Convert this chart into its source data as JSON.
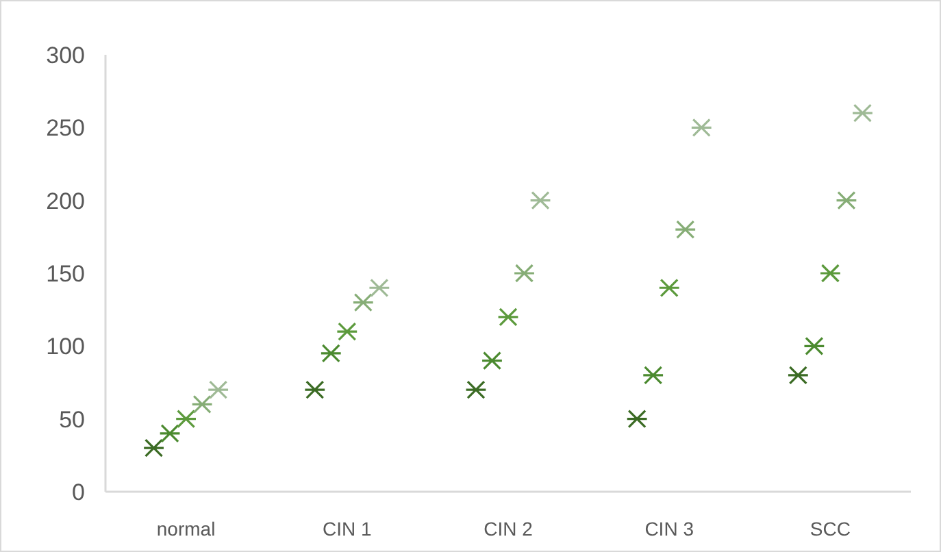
{
  "chart_data": {
    "type": "scatter",
    "categories": [
      "normal",
      "CIN 1",
      "CIN 2",
      "CIN 3",
      "SCC"
    ],
    "series": [
      {
        "color": "#3b6b24",
        "values": [
          30,
          70,
          70,
          50,
          80
        ]
      },
      {
        "color": "#4b8a2f",
        "values": [
          40,
          95,
          90,
          80,
          100
        ]
      },
      {
        "color": "#5c9a3c",
        "values": [
          50,
          110,
          120,
          140,
          150
        ]
      },
      {
        "color": "#86ad76",
        "values": [
          60,
          130,
          150,
          180,
          200
        ]
      },
      {
        "color": "#9fba96",
        "values": [
          70,
          140,
          200,
          250,
          260
        ]
      }
    ],
    "ylim": [
      0,
      300
    ],
    "yticks": [
      0,
      50,
      100,
      150,
      200,
      250,
      300
    ],
    "grid": false,
    "marker": "cross"
  }
}
